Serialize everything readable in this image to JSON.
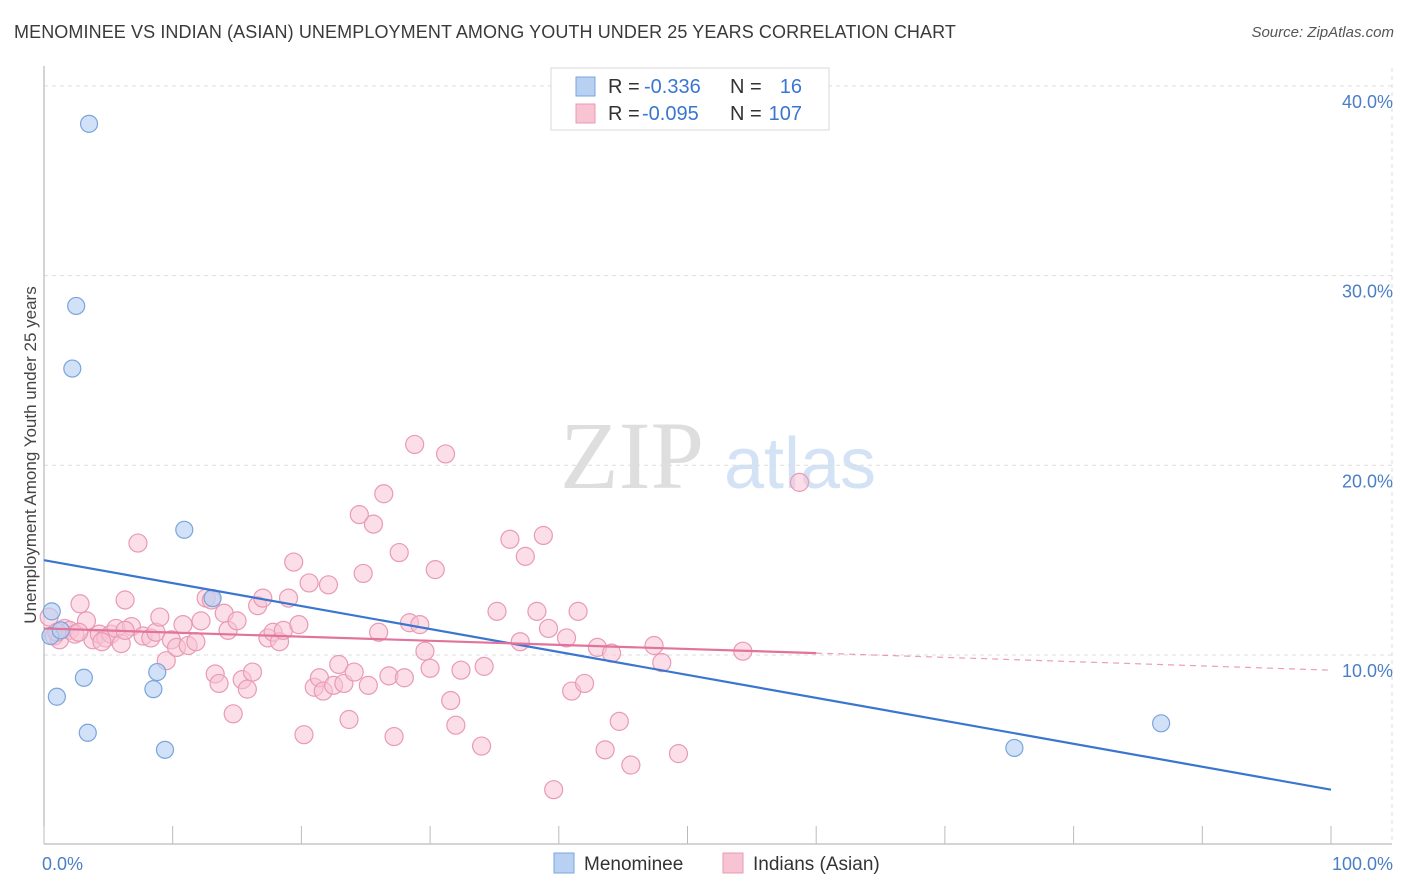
{
  "title": "MENOMINEE VS INDIAN (ASIAN) UNEMPLOYMENT AMONG YOUTH UNDER 25 YEARS CORRELATION CHART",
  "source": "Source: ZipAtlas.com",
  "watermark": {
    "zip": "ZIP",
    "atlas": "atlas"
  },
  "colors": {
    "menominee_fill": "#b8d1f3",
    "menominee_stroke": "#7aa5dc",
    "menominee_line": "#3a76d0",
    "indians_fill": "#f8c3d3",
    "indians_stroke": "#e99ab4",
    "indians_line": "#e2739c",
    "tick_text": "#4a7ec7",
    "grid": "#dddddd"
  },
  "legend": {
    "rows": [
      {
        "r_label": "R =",
        "r_value": "-0.336",
        "n_label": "N =",
        "n_value": "16"
      },
      {
        "r_label": "R =",
        "r_value": "-0.095",
        "n_label": "N =",
        "n_value": "107"
      }
    ]
  },
  "chart_data": {
    "type": "scatter",
    "title": "MENOMINEE VS INDIAN (ASIAN) UNEMPLOYMENT AMONG YOUTH UNDER 25 YEARS CORRELATION CHART",
    "xlabel": "",
    "ylabel": "Unemployment Among Youth under 25 years",
    "xlim": [
      0,
      100
    ],
    "ylim": [
      0,
      40
    ],
    "x_tick_labels": [
      "0.0%",
      "100.0%"
    ],
    "y_ticks": [
      10,
      20,
      30,
      40
    ],
    "y_tick_labels": [
      "10.0%",
      "20.0%",
      "30.0%",
      "40.0%"
    ],
    "grid": true,
    "legend_position": "bottom",
    "series": [
      {
        "name": "Menominee",
        "points": [
          [
            0.6,
            12.3
          ],
          [
            3.5,
            38.0
          ],
          [
            2.5,
            28.4
          ],
          [
            2.2,
            25.1
          ],
          [
            1.0,
            7.8
          ],
          [
            3.1,
            8.8
          ],
          [
            3.4,
            5.9
          ],
          [
            8.5,
            8.2
          ],
          [
            8.8,
            9.1
          ],
          [
            9.4,
            5.0
          ],
          [
            10.9,
            16.6
          ],
          [
            13.1,
            13.0
          ],
          [
            75.4,
            5.1
          ],
          [
            86.8,
            6.4
          ],
          [
            0.5,
            11.0
          ],
          [
            1.3,
            11.3
          ]
        ],
        "trend": {
          "x": [
            0,
            100
          ],
          "y": [
            15.0,
            2.9
          ]
        }
      },
      {
        "name": "Indians (Asian)",
        "points": [
          [
            0.4,
            12.0
          ],
          [
            0.8,
            11.0
          ],
          [
            1.2,
            10.8
          ],
          [
            1.6,
            11.4
          ],
          [
            2.0,
            11.3
          ],
          [
            2.4,
            11.1
          ],
          [
            2.8,
            12.7
          ],
          [
            3.3,
            11.8
          ],
          [
            3.8,
            10.8
          ],
          [
            4.3,
            11.1
          ],
          [
            4.8,
            10.9
          ],
          [
            5.2,
            11.1
          ],
          [
            5.6,
            11.4
          ],
          [
            6.0,
            10.6
          ],
          [
            6.3,
            12.9
          ],
          [
            6.8,
            11.5
          ],
          [
            7.3,
            15.9
          ],
          [
            7.7,
            11.0
          ],
          [
            8.3,
            10.9
          ],
          [
            8.7,
            11.2
          ],
          [
            9.0,
            12.0
          ],
          [
            9.5,
            9.7
          ],
          [
            9.9,
            10.8
          ],
          [
            10.3,
            10.4
          ],
          [
            10.8,
            11.6
          ],
          [
            11.2,
            10.5
          ],
          [
            11.8,
            10.7
          ],
          [
            12.2,
            11.8
          ],
          [
            12.6,
            13.0
          ],
          [
            13.0,
            12.9
          ],
          [
            13.3,
            9.0
          ],
          [
            13.6,
            8.5
          ],
          [
            14.0,
            12.2
          ],
          [
            14.3,
            11.3
          ],
          [
            14.7,
            6.9
          ],
          [
            15.0,
            11.8
          ],
          [
            15.4,
            8.7
          ],
          [
            15.8,
            8.2
          ],
          [
            16.2,
            9.1
          ],
          [
            16.6,
            12.6
          ],
          [
            17.0,
            13.0
          ],
          [
            17.4,
            10.9
          ],
          [
            17.8,
            11.2
          ],
          [
            18.3,
            10.7
          ],
          [
            18.6,
            11.3
          ],
          [
            19.0,
            13.0
          ],
          [
            19.4,
            14.9
          ],
          [
            19.8,
            11.6
          ],
          [
            20.2,
            5.8
          ],
          [
            20.6,
            13.8
          ],
          [
            21.0,
            8.3
          ],
          [
            21.4,
            8.8
          ],
          [
            21.7,
            8.1
          ],
          [
            22.1,
            13.7
          ],
          [
            22.5,
            8.4
          ],
          [
            22.9,
            9.5
          ],
          [
            23.3,
            8.5
          ],
          [
            23.7,
            6.6
          ],
          [
            24.1,
            9.1
          ],
          [
            24.5,
            17.4
          ],
          [
            24.8,
            14.3
          ],
          [
            25.2,
            8.4
          ],
          [
            25.6,
            16.9
          ],
          [
            26.0,
            11.2
          ],
          [
            26.4,
            18.5
          ],
          [
            26.8,
            8.9
          ],
          [
            27.2,
            5.7
          ],
          [
            27.6,
            15.4
          ],
          [
            28.0,
            8.8
          ],
          [
            28.4,
            11.7
          ],
          [
            28.8,
            21.1
          ],
          [
            29.2,
            11.6
          ],
          [
            29.6,
            10.2
          ],
          [
            30.0,
            9.3
          ],
          [
            30.4,
            14.5
          ],
          [
            31.2,
            20.6
          ],
          [
            31.6,
            7.6
          ],
          [
            32.0,
            6.3
          ],
          [
            32.4,
            9.2
          ],
          [
            34.0,
            5.2
          ],
          [
            34.2,
            9.4
          ],
          [
            35.2,
            12.3
          ],
          [
            36.2,
            16.1
          ],
          [
            37.0,
            10.7
          ],
          [
            37.4,
            15.2
          ],
          [
            38.3,
            12.3
          ],
          [
            38.8,
            16.3
          ],
          [
            39.2,
            11.4
          ],
          [
            39.6,
            2.9
          ],
          [
            40.6,
            10.9
          ],
          [
            41.0,
            8.1
          ],
          [
            41.5,
            12.3
          ],
          [
            42.0,
            8.5
          ],
          [
            43.0,
            10.4
          ],
          [
            43.6,
            5.0
          ],
          [
            44.1,
            10.1
          ],
          [
            44.7,
            6.5
          ],
          [
            45.6,
            4.2
          ],
          [
            47.4,
            10.5
          ],
          [
            48.0,
            9.6
          ],
          [
            49.3,
            4.8
          ],
          [
            54.3,
            10.2
          ],
          [
            58.7,
            19.1
          ],
          [
            1.0,
            11.2
          ],
          [
            2.7,
            11.2
          ],
          [
            4.5,
            10.7
          ],
          [
            6.3,
            11.3
          ]
        ],
        "trend": {
          "x": [
            0,
            60
          ],
          "y": [
            11.4,
            10.1
          ]
        },
        "trend_dashed": {
          "x": [
            60,
            100
          ],
          "y": [
            10.1,
            9.2
          ]
        }
      }
    ]
  }
}
